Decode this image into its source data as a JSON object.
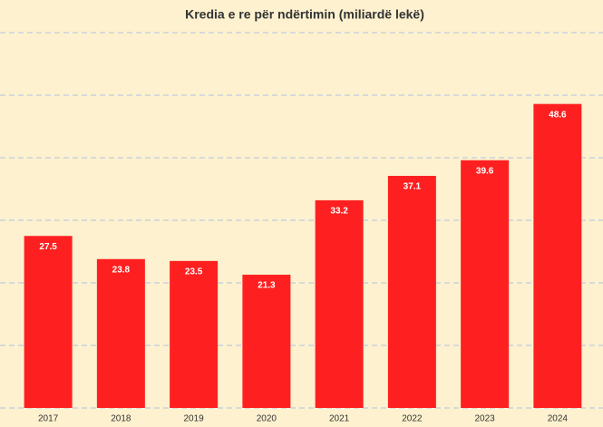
{
  "chart_data": {
    "type": "bar",
    "title": "Kredia e re për ndërtimin (miliardë lekë)",
    "categories": [
      "2017",
      "2018",
      "2019",
      "2020",
      "2021",
      "2022",
      "2023",
      "2024"
    ],
    "values": [
      27.5,
      23.8,
      23.5,
      21.3,
      33.2,
      37.1,
      39.6,
      48.6
    ],
    "color": "#fe2020",
    "ylim": [
      0,
      60
    ],
    "yticks": [
      0,
      10,
      20,
      30,
      40,
      50,
      60
    ],
    "grid": true
  }
}
